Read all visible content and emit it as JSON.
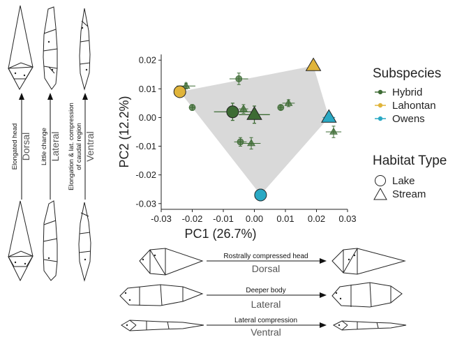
{
  "chart_data": {
    "type": "scatter",
    "xlabel": "PC1 (26.7%)",
    "ylabel": "PC2 (12.2%)",
    "xlim": [
      -0.03,
      0.03
    ],
    "ylim": [
      -0.032,
      0.022
    ],
    "xticks": [
      "-0.03",
      "-0.02",
      "-0.01",
      "0.00",
      "0.01",
      "0.02",
      "0.03"
    ],
    "yticks": [
      "0.02",
      "0.01",
      "0.00",
      "-0.01",
      "-0.02",
      "-0.03"
    ],
    "xtick_values": [
      -0.03,
      -0.02,
      -0.01,
      0.0,
      0.01,
      0.02,
      0.03
    ],
    "ytick_values": [
      0.02,
      0.01,
      0.0,
      -0.01,
      -0.02,
      -0.03
    ],
    "grid": false,
    "hull": [
      [
        -0.024,
        0.009
      ],
      [
        0.019,
        0.018
      ],
      [
        0.024,
        0.0
      ],
      [
        0.002,
        -0.027
      ]
    ],
    "colors": {
      "Hybrid": "#3d6b34",
      "Lahontan": "#e0b43a",
      "Owens": "#2aa9c4",
      "hull": "#d9d9d9"
    },
    "points": [
      {
        "subspecies": "Hybrid",
        "habitat": "Lake",
        "x": -0.007,
        "y": 0.002,
        "xerr": 0.006,
        "yerr": 0.003,
        "large": true
      },
      {
        "subspecies": "Hybrid",
        "habitat": "Stream",
        "x": 0.0,
        "y": 0.001,
        "xerr": 0.005,
        "yerr": 0.003,
        "large": true
      },
      {
        "subspecies": "Lahontan",
        "habitat": "Lake",
        "x": -0.024,
        "y": 0.009,
        "xerr": 0.001,
        "yerr": 0.001,
        "large": true
      },
      {
        "subspecies": "Lahontan",
        "habitat": "Stream",
        "x": 0.019,
        "y": 0.018,
        "xerr": 0.0005,
        "yerr": 0.0005,
        "large": true
      },
      {
        "subspecies": "Owens",
        "habitat": "Lake",
        "x": 0.002,
        "y": -0.027,
        "xerr": 0.001,
        "yerr": 0.002,
        "large": true
      },
      {
        "subspecies": "Owens",
        "habitat": "Stream",
        "x": 0.024,
        "y": 0.0,
        "xerr": 0.002,
        "yerr": 0.001,
        "large": true
      },
      {
        "subspecies": "Hybrid",
        "habitat": "Stream",
        "x": -0.022,
        "y": 0.011,
        "xerr": 0.003,
        "yerr": 0.001,
        "large": false
      },
      {
        "subspecies": "Hybrid",
        "habitat": "Lake",
        "x": -0.005,
        "y": 0.0135,
        "xerr": 0.003,
        "yerr": 0.002,
        "large": false
      },
      {
        "subspecies": "Hybrid",
        "habitat": "Lake",
        "x": -0.02,
        "y": 0.0035,
        "xerr": 0.001,
        "yerr": 0.001,
        "large": false
      },
      {
        "subspecies": "Hybrid",
        "habitat": "Stream",
        "x": -0.0035,
        "y": 0.003,
        "xerr": 0.0015,
        "yerr": 0.0015,
        "large": false
      },
      {
        "subspecies": "Hybrid",
        "habitat": "Lake",
        "x": 0.0085,
        "y": 0.0035,
        "xerr": 0.0008,
        "yerr": 0.0008,
        "large": false
      },
      {
        "subspecies": "Hybrid",
        "habitat": "Stream",
        "x": 0.011,
        "y": 0.005,
        "xerr": 0.002,
        "yerr": 0.0012,
        "large": false
      },
      {
        "subspecies": "Hybrid",
        "habitat": "Lake",
        "x": -0.0045,
        "y": -0.0085,
        "xerr": 0.002,
        "yerr": 0.0015,
        "large": false
      },
      {
        "subspecies": "Hybrid",
        "habitat": "Stream",
        "x": -0.001,
        "y": -0.009,
        "xerr": 0.003,
        "yerr": 0.002,
        "large": false
      },
      {
        "subspecies": "Hybrid",
        "habitat": "Stream",
        "x": 0.0255,
        "y": -0.005,
        "xerr": 0.0025,
        "yerr": 0.002,
        "large": false
      }
    ]
  },
  "legend": {
    "subspecies_title": "Subspecies",
    "subspecies": [
      {
        "label": "Hybrid",
        "color": "#3d6b34"
      },
      {
        "label": "Lahontan",
        "color": "#e0b43a"
      },
      {
        "label": "Owens",
        "color": "#2aa9c4"
      }
    ],
    "habitat_title": "Habitat Type",
    "habitat": [
      {
        "label": "Lake",
        "shape": "circle"
      },
      {
        "label": "Stream",
        "shape": "triangle"
      }
    ]
  },
  "left_panel": {
    "dorsal": {
      "annotation": "Elongated head",
      "view": "Dorsal"
    },
    "lateral": {
      "annotation": "Little change",
      "view": "Lateral"
    },
    "ventral": {
      "annotation_line1": "Elongation & lat. compression",
      "annotation_line2": "of caudal region",
      "view": "Ventral"
    }
  },
  "bottom_panel": {
    "dorsal": {
      "annotation": "Rostrally compressed head",
      "view": "Dorsal"
    },
    "lateral": {
      "annotation": "Deeper body",
      "view": "Lateral"
    },
    "ventral": {
      "annotation": "Lateral compression",
      "view": "Ventral"
    }
  }
}
